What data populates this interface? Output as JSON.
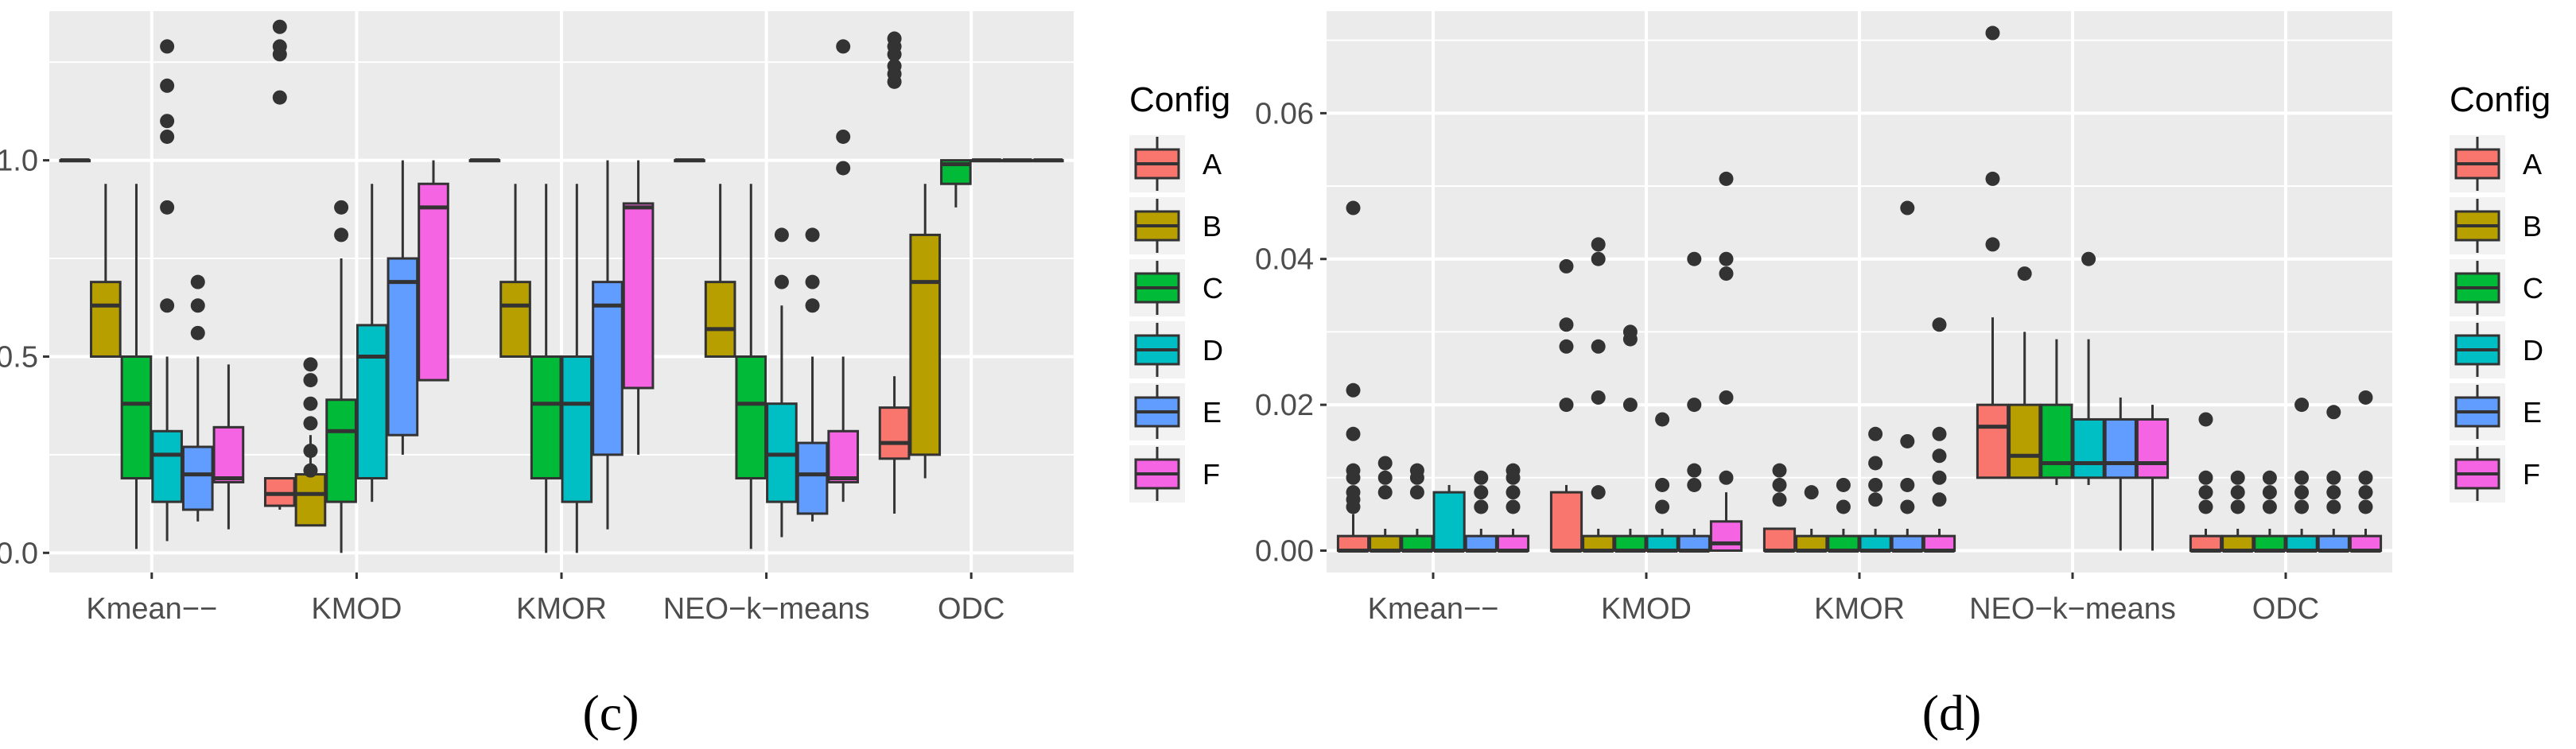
{
  "chart_data": [
    {
      "type": "boxplot",
      "caption": "(c)",
      "xlabel": "",
      "ylabel": "",
      "ylim": [
        -0.05,
        1.38
      ],
      "y_ticks": [
        0.0,
        0.5,
        1.0
      ],
      "y_tick_labels": [
        "0.0",
        "0.5",
        "1.0"
      ],
      "grid": true,
      "legend_position": "right",
      "legend_title": "Config",
      "categories": [
        "Kmean−−",
        "KMOD",
        "KMOR",
        "NEO−k−means",
        "ODC"
      ],
      "series": [
        {
          "name": "A",
          "color": "#F8766D",
          "boxes": [
            {
              "min": 1.0,
              "q1": 1.0,
              "median": 1.0,
              "q3": 1.0,
              "max": 1.0,
              "outliers": []
            },
            {
              "min": 0.11,
              "q1": 0.12,
              "median": 0.15,
              "q3": 0.19,
              "max": 0.19,
              "outliers": [
                1.16,
                1.27,
                1.29,
                1.34
              ]
            },
            {
              "min": 1.0,
              "q1": 1.0,
              "median": 1.0,
              "q3": 1.0,
              "max": 1.0,
              "outliers": []
            },
            {
              "min": 1.0,
              "q1": 1.0,
              "median": 1.0,
              "q3": 1.0,
              "max": 1.0,
              "outliers": []
            },
            {
              "min": 0.1,
              "q1": 0.24,
              "median": 0.28,
              "q3": 0.37,
              "max": 0.45,
              "outliers": [
                1.2,
                1.22,
                1.24,
                1.27,
                1.29,
                1.31
              ]
            }
          ]
        },
        {
          "name": "B",
          "color": "#B79F00",
          "boxes": [
            {
              "min": 0.5,
              "q1": 0.5,
              "median": 0.63,
              "q3": 0.69,
              "max": 0.94,
              "outliers": []
            },
            {
              "min": 0.07,
              "q1": 0.07,
              "median": 0.15,
              "q3": 0.2,
              "max": 0.3,
              "outliers": [
                0.21,
                0.26,
                0.33,
                0.38,
                0.44,
                0.48
              ]
            },
            {
              "min": 0.5,
              "q1": 0.5,
              "median": 0.63,
              "q3": 0.69,
              "max": 0.94,
              "outliers": []
            },
            {
              "min": 0.5,
              "q1": 0.5,
              "median": 0.57,
              "q3": 0.69,
              "max": 0.94,
              "outliers": []
            },
            {
              "min": 0.19,
              "q1": 0.25,
              "median": 0.69,
              "q3": 0.81,
              "max": 0.94,
              "outliers": []
            }
          ]
        },
        {
          "name": "C",
          "color": "#00BA38",
          "boxes": [
            {
              "min": 0.01,
              "q1": 0.19,
              "median": 0.38,
              "q3": 0.5,
              "max": 0.94,
              "outliers": []
            },
            {
              "min": 0.0,
              "q1": 0.13,
              "median": 0.31,
              "q3": 0.39,
              "max": 0.75,
              "outliers": [
                0.81,
                0.88
              ]
            },
            {
              "min": 0.0,
              "q1": 0.19,
              "median": 0.38,
              "q3": 0.5,
              "max": 0.94,
              "outliers": []
            },
            {
              "min": 0.01,
              "q1": 0.19,
              "median": 0.38,
              "q3": 0.5,
              "max": 0.94,
              "outliers": []
            },
            {
              "min": 0.88,
              "q1": 0.94,
              "median": 0.99,
              "q3": 1.0,
              "max": 1.0,
              "outliers": []
            }
          ]
        },
        {
          "name": "D",
          "color": "#00BFC4",
          "boxes": [
            {
              "min": 0.03,
              "q1": 0.13,
              "median": 0.25,
              "q3": 0.31,
              "max": 0.5,
              "outliers": [
                0.63,
                0.88
              ]
            },
            {
              "min": 0.13,
              "q1": 0.19,
              "median": 0.5,
              "q3": 0.58,
              "max": 0.94,
              "outliers": []
            },
            {
              "min": 0.0,
              "q1": 0.13,
              "median": 0.38,
              "q3": 0.5,
              "max": 0.94,
              "outliers": []
            },
            {
              "min": 0.04,
              "q1": 0.13,
              "median": 0.25,
              "q3": 0.38,
              "max": 0.63,
              "outliers": [
                0.69,
                0.81
              ]
            },
            {
              "min": 1.0,
              "q1": 1.0,
              "median": 1.0,
              "q3": 1.0,
              "max": 1.0,
              "outliers": []
            }
          ]
        },
        {
          "name": "E",
          "color": "#619CFF",
          "boxes": [
            {
              "min": 0.08,
              "q1": 0.11,
              "median": 0.2,
              "q3": 0.27,
              "max": 0.5,
              "outliers": [
                0.56,
                0.63,
                0.69
              ]
            },
            {
              "min": 0.25,
              "q1": 0.3,
              "median": 0.69,
              "q3": 0.75,
              "max": 1.0,
              "outliers": []
            },
            {
              "min": 0.06,
              "q1": 0.25,
              "median": 0.63,
              "q3": 0.69,
              "max": 1.0,
              "outliers": []
            },
            {
              "min": 0.08,
              "q1": 0.1,
              "median": 0.2,
              "q3": 0.28,
              "max": 0.5,
              "outliers": [
                0.63,
                0.69,
                0.81
              ]
            },
            {
              "min": 1.0,
              "q1": 1.0,
              "median": 1.0,
              "q3": 1.0,
              "max": 1.0,
              "outliers": []
            }
          ]
        },
        {
          "name": "F",
          "color": "#F564E3",
          "boxes": [
            {
              "min": 0.06,
              "q1": 0.18,
              "median": 0.19,
              "q3": 0.32,
              "max": 0.48,
              "outliers": []
            },
            {
              "min": 0.44,
              "q1": 0.44,
              "median": 0.88,
              "q3": 0.94,
              "max": 1.0,
              "outliers": []
            },
            {
              "min": 0.25,
              "q1": 0.42,
              "median": 0.88,
              "q3": 0.89,
              "max": 1.0,
              "outliers": []
            },
            {
              "min": 0.13,
              "q1": 0.18,
              "median": 0.19,
              "q3": 0.31,
              "max": 0.5,
              "outliers": [
                0.98,
                1.06,
                1.29
              ]
            },
            {
              "min": 1.0,
              "q1": 1.0,
              "median": 1.0,
              "q3": 1.0,
              "max": 1.0,
              "outliers": []
            }
          ]
        }
      ],
      "extra_outliers": [
        {
          "category": 0,
          "series": 3,
          "values": [
            1.06,
            1.1,
            1.19,
            1.29
          ]
        }
      ]
    },
    {
      "type": "boxplot",
      "caption": "(d)",
      "xlabel": "",
      "ylabel": "",
      "ylim": [
        -0.003,
        0.074
      ],
      "y_ticks": [
        0.0,
        0.02,
        0.04,
        0.06
      ],
      "y_tick_labels": [
        "0.00",
        "0.02",
        "0.04",
        "0.06"
      ],
      "grid": true,
      "legend_position": "right",
      "legend_title": "Config",
      "categories": [
        "Kmean−−",
        "KMOD",
        "KMOR",
        "NEO−k−means",
        "ODC"
      ],
      "series": [
        {
          "name": "A",
          "color": "#F8766D",
          "boxes": [
            {
              "min": 0.0,
              "q1": 0.0,
              "median": 0.0,
              "q3": 0.002,
              "max": 0.005,
              "outliers": [
                0.006,
                0.007,
                0.008,
                0.01,
                0.011,
                0.016,
                0.022,
                0.047
              ]
            },
            {
              "min": 0.0,
              "q1": 0.0,
              "median": 0.0,
              "q3": 0.008,
              "max": 0.009,
              "outliers": [
                0.02,
                0.028,
                0.031,
                0.039
              ]
            },
            {
              "min": 0.0,
              "q1": 0.0,
              "median": 0.0,
              "q3": 0.003,
              "max": 0.003,
              "outliers": [
                0.007,
                0.009,
                0.011
              ]
            },
            {
              "min": 0.01,
              "q1": 0.01,
              "median": 0.017,
              "q3": 0.02,
              "max": 0.032,
              "outliers": [
                0.042,
                0.051,
                0.071
              ]
            },
            {
              "min": 0.0,
              "q1": 0.0,
              "median": 0.0,
              "q3": 0.002,
              "max": 0.003,
              "outliers": [
                0.006,
                0.008,
                0.01,
                0.018
              ]
            }
          ]
        },
        {
          "name": "B",
          "color": "#B79F00",
          "boxes": [
            {
              "min": 0.0,
              "q1": 0.0,
              "median": 0.0,
              "q3": 0.002,
              "max": 0.003,
              "outliers": [
                0.008,
                0.01,
                0.012
              ]
            },
            {
              "min": 0.0,
              "q1": 0.0,
              "median": 0.0,
              "q3": 0.002,
              "max": 0.003,
              "outliers": [
                0.008,
                0.021,
                0.028,
                0.04,
                0.042
              ]
            },
            {
              "min": 0.0,
              "q1": 0.0,
              "median": 0.0,
              "q3": 0.002,
              "max": 0.003,
              "outliers": [
                0.008
              ]
            },
            {
              "min": 0.01,
              "q1": 0.01,
              "median": 0.013,
              "q3": 0.02,
              "max": 0.03,
              "outliers": [
                0.038
              ]
            },
            {
              "min": 0.0,
              "q1": 0.0,
              "median": 0.0,
              "q3": 0.002,
              "max": 0.003,
              "outliers": [
                0.006,
                0.008,
                0.01
              ]
            }
          ]
        },
        {
          "name": "C",
          "color": "#00BA38",
          "boxes": [
            {
              "min": 0.0,
              "q1": 0.0,
              "median": 0.0,
              "q3": 0.002,
              "max": 0.003,
              "outliers": [
                0.008,
                0.01,
                0.011
              ]
            },
            {
              "min": 0.0,
              "q1": 0.0,
              "median": 0.0,
              "q3": 0.002,
              "max": 0.003,
              "outliers": [
                0.02,
                0.029,
                0.03
              ]
            },
            {
              "min": 0.0,
              "q1": 0.0,
              "median": 0.0,
              "q3": 0.002,
              "max": 0.003,
              "outliers": [
                0.006,
                0.009
              ]
            },
            {
              "min": 0.009,
              "q1": 0.01,
              "median": 0.012,
              "q3": 0.02,
              "max": 0.029,
              "outliers": []
            },
            {
              "min": 0.0,
              "q1": 0.0,
              "median": 0.0,
              "q3": 0.002,
              "max": 0.003,
              "outliers": [
                0.006,
                0.008,
                0.01
              ]
            }
          ]
        },
        {
          "name": "D",
          "color": "#00BFC4",
          "boxes": [
            {
              "min": 0.0,
              "q1": 0.0,
              "median": 0.0,
              "q3": 0.008,
              "max": 0.009,
              "outliers": []
            },
            {
              "min": 0.0,
              "q1": 0.0,
              "median": 0.0,
              "q3": 0.002,
              "max": 0.003,
              "outliers": [
                0.006,
                0.009,
                0.018
              ]
            },
            {
              "min": 0.0,
              "q1": 0.0,
              "median": 0.0,
              "q3": 0.002,
              "max": 0.003,
              "outliers": [
                0.007,
                0.009,
                0.012,
                0.016
              ]
            },
            {
              "min": 0.009,
              "q1": 0.01,
              "median": 0.012,
              "q3": 0.018,
              "max": 0.029,
              "outliers": [
                0.04
              ]
            },
            {
              "min": 0.0,
              "q1": 0.0,
              "median": 0.0,
              "q3": 0.002,
              "max": 0.003,
              "outliers": [
                0.006,
                0.008,
                0.01,
                0.02
              ]
            }
          ]
        },
        {
          "name": "E",
          "color": "#619CFF",
          "boxes": [
            {
              "min": 0.0,
              "q1": 0.0,
              "median": 0.0,
              "q3": 0.002,
              "max": 0.003,
              "outliers": [
                0.006,
                0.008,
                0.01
              ]
            },
            {
              "min": 0.0,
              "q1": 0.0,
              "median": 0.0,
              "q3": 0.002,
              "max": 0.003,
              "outliers": [
                0.009,
                0.011,
                0.02,
                0.04
              ]
            },
            {
              "min": 0.0,
              "q1": 0.0,
              "median": 0.0,
              "q3": 0.002,
              "max": 0.003,
              "outliers": [
                0.006,
                0.009,
                0.015,
                0.047
              ]
            },
            {
              "min": 0.0,
              "q1": 0.01,
              "median": 0.012,
              "q3": 0.018,
              "max": 0.021,
              "outliers": []
            },
            {
              "min": 0.0,
              "q1": 0.0,
              "median": 0.0,
              "q3": 0.002,
              "max": 0.003,
              "outliers": [
                0.006,
                0.008,
                0.01,
                0.019
              ]
            }
          ]
        },
        {
          "name": "F",
          "color": "#F564E3",
          "boxes": [
            {
              "min": 0.0,
              "q1": 0.0,
              "median": 0.0,
              "q3": 0.002,
              "max": 0.003,
              "outliers": [
                0.006,
                0.008,
                0.01,
                0.011
              ]
            },
            {
              "min": 0.0,
              "q1": 0.0,
              "median": 0.001,
              "q3": 0.004,
              "max": 0.008,
              "outliers": [
                0.01,
                0.021,
                0.038,
                0.04,
                0.051
              ]
            },
            {
              "min": 0.0,
              "q1": 0.0,
              "median": 0.0,
              "q3": 0.002,
              "max": 0.003,
              "outliers": [
                0.007,
                0.01,
                0.013,
                0.016,
                0.031
              ]
            },
            {
              "min": 0.0,
              "q1": 0.01,
              "median": 0.012,
              "q3": 0.018,
              "max": 0.02,
              "outliers": []
            },
            {
              "min": 0.0,
              "q1": 0.0,
              "median": 0.0,
              "q3": 0.002,
              "max": 0.003,
              "outliers": [
                0.006,
                0.008,
                0.01,
                0.021
              ]
            }
          ]
        }
      ],
      "extra_outliers": []
    }
  ]
}
